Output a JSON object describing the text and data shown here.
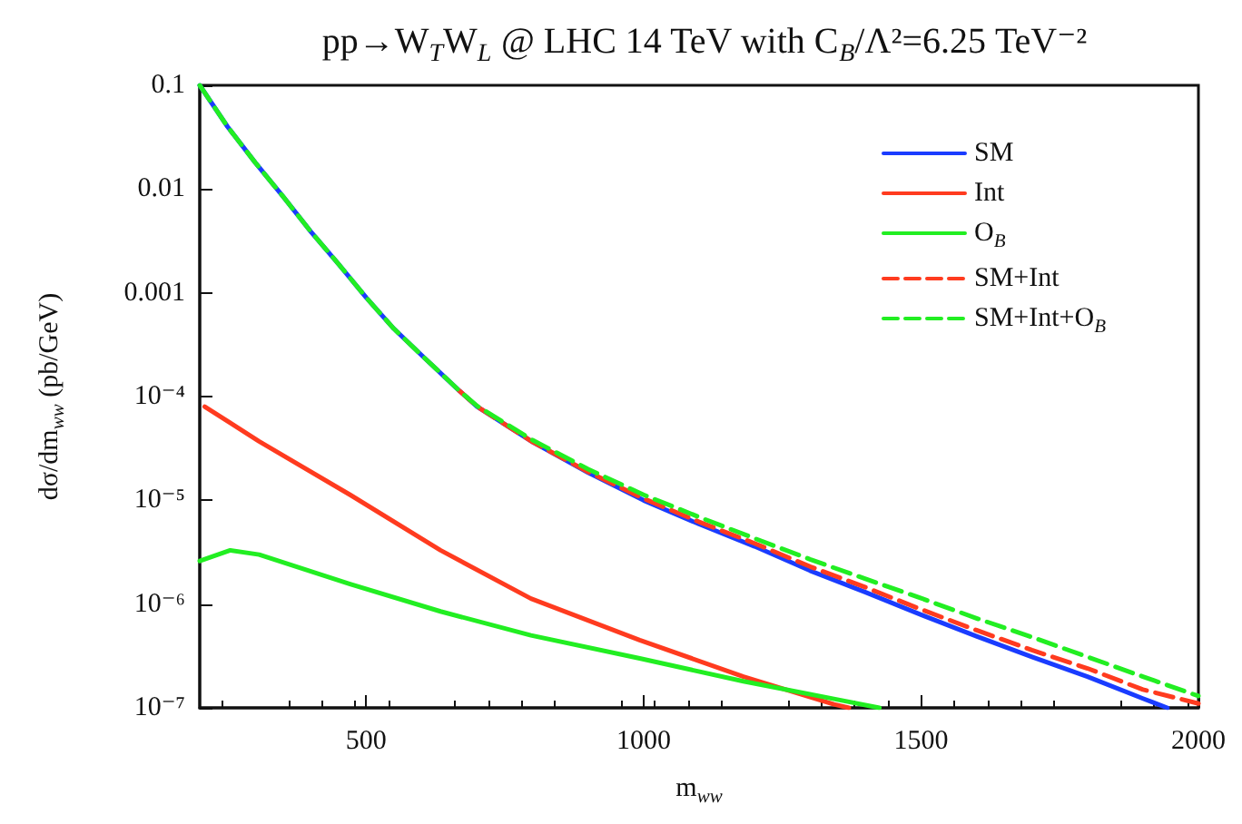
{
  "chart_data": {
    "type": "line",
    "title": "pp→W$_{T}$W$_{L}$ @ LHC 14 TeV with C$_{B}$/Λ²=6.25 TeV⁻²",
    "xlabel": "m$_{ww}$",
    "ylabel": "dσ/dm$_{ww}$ (pb/GeV)",
    "log": "y",
    "xlim": [
      200,
      2000
    ],
    "xticks": [
      500,
      1000,
      1500,
      2000
    ],
    "ylim": [
      1e-07,
      0.1
    ],
    "yticks": [
      {
        "value": 0.1,
        "label": "0.1"
      },
      {
        "value": 0.01,
        "label": "0.01"
      },
      {
        "value": 0.001,
        "label": "0.001"
      },
      {
        "value": 0.0001,
        "label": "10⁻⁴"
      },
      {
        "value": 1e-05,
        "label": "10⁻⁵"
      },
      {
        "value": 1e-06,
        "label": "10⁻⁶"
      },
      {
        "value": 1e-07,
        "label": "10⁻⁷"
      }
    ],
    "grid": false,
    "legend": "top right",
    "marker": "none",
    "series": [
      {
        "name": "SM",
        "color": "#1a3cff",
        "line_style": "solid",
        "x": [
          200,
          250,
          300,
          350,
          400,
          450,
          500,
          550,
          600,
          667,
          700,
          800,
          900,
          1000,
          1100,
          1200,
          1300,
          1400,
          1500,
          1600,
          1700,
          1800,
          1900,
          1944
        ],
        "values": [
          0.1,
          0.04,
          0.018,
          0.0085,
          0.0039,
          0.0019,
          0.0009,
          0.00045,
          0.00025,
          0.000115,
          8e-05,
          3.65e-05,
          1.85e-05,
          1e-05,
          5.9e-06,
          3.6e-06,
          2.1e-06,
          1.3e-06,
          7.9e-07,
          4.9e-07,
          3.1e-07,
          2e-07,
          1.23e-07,
          1e-07
        ]
      },
      {
        "name": "Int",
        "color": "#ff3b1f",
        "line_style": "solid",
        "x": [
          209,
          307,
          471,
          634,
          797,
          993,
          1180,
          1343,
          1370
        ],
        "values": [
          8e-05,
          3.7e-05,
          1.13e-05,
          3.3e-06,
          1.13e-06,
          4.5e-07,
          2e-07,
          1.08e-07,
          1e-07
        ]
      },
      {
        "name": "O$_{B}$",
        "color": "#22ee22",
        "line_style": "solid",
        "x": [
          200,
          255,
          307,
          471,
          634,
          797,
          993,
          1180,
          1343,
          1425
        ],
        "values": [
          2.6e-06,
          3.3e-06,
          3e-06,
          1.56e-06,
          8.5e-07,
          5e-07,
          3e-07,
          1.8e-07,
          1.22e-07,
          1e-07
        ]
      },
      {
        "name": "SM+Int",
        "color": "#ff3b1f",
        "line_style": "dashed",
        "x": [
          667,
          700,
          800,
          900,
          1000,
          1100,
          1200,
          1300,
          1400,
          1500,
          1600,
          1700,
          1800,
          1900,
          2000
        ],
        "values": [
          0.000115,
          8e-05,
          3.65e-05,
          1.88e-05,
          1.04e-05,
          6.2e-06,
          3.85e-06,
          2.3e-06,
          1.45e-06,
          8.9e-07,
          5.6e-07,
          3.6e-07,
          2.4e-07,
          1.5e-07,
          1.1e-07
        ]
      },
      {
        "name": "SM+Int+O$_{B}$",
        "color": "#22ee22",
        "line_style": "dashed",
        "x": [
          200,
          250,
          300,
          350,
          400,
          450,
          500,
          550,
          600,
          667,
          700,
          800,
          900,
          1000,
          1100,
          1200,
          1300,
          1400,
          1500,
          1600,
          1700,
          1800,
          1900,
          2000
        ],
        "values": [
          0.1,
          0.04,
          0.018,
          0.0085,
          0.0039,
          0.0019,
          0.0009,
          0.00045,
          0.00025,
          0.000115,
          8.1e-05,
          3.8e-05,
          2e-05,
          1.13e-05,
          6.9e-06,
          4.3e-06,
          2.7e-06,
          1.75e-06,
          1.14e-06,
          7.3e-07,
          4.8e-07,
          3.1e-07,
          2e-07,
          1.3e-07
        ]
      }
    ]
  }
}
